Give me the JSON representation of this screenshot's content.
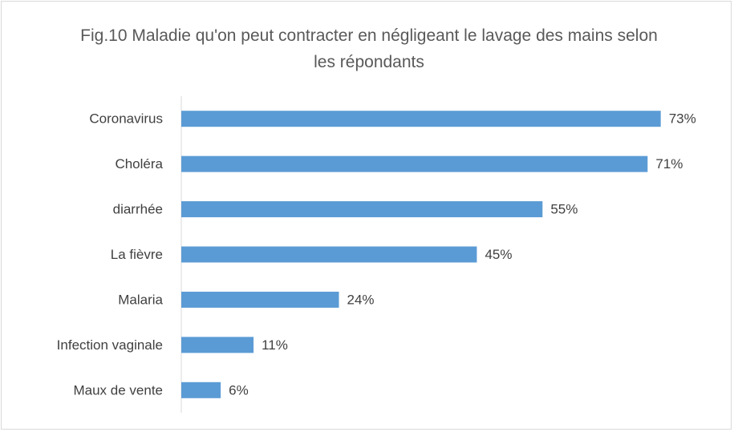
{
  "chart_data": {
    "type": "bar",
    "orientation": "horizontal",
    "title": "Fig.10 Maladie qu'on peut contracter en négligeant le lavage des mains selon les répondants",
    "categories": [
      "Coronavirus",
      "Choléra",
      "diarrhée",
      "La fièvre",
      "Malaria",
      "Infection vaginale",
      "Maux de vente"
    ],
    "values": [
      73,
      71,
      55,
      45,
      24,
      11,
      6
    ],
    "value_labels": [
      "73%",
      "71%",
      "55%",
      "45%",
      "24%",
      "11%",
      "6%"
    ],
    "color": "#5b9bd5",
    "xlim": [
      0,
      80
    ]
  }
}
